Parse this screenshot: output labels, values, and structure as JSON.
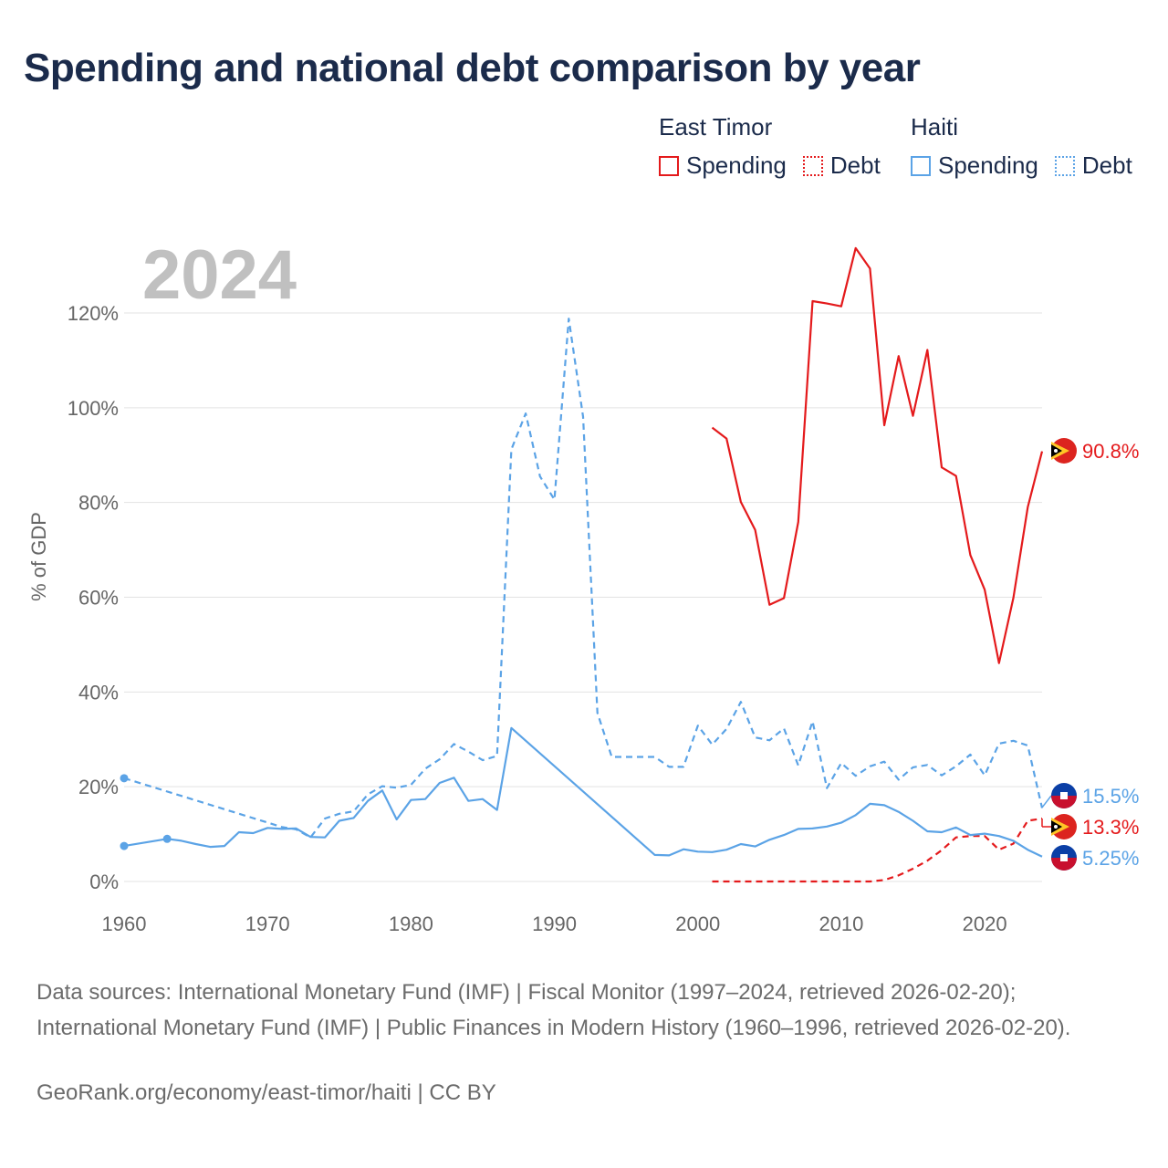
{
  "header": {
    "title": "Spending and national debt comparison by year"
  },
  "legend": {
    "groups": [
      {
        "country": "East Timor",
        "color": "#e41a1c",
        "items": [
          "Spending",
          "Debt"
        ]
      },
      {
        "country": "Haiti",
        "color": "#5ba3e6",
        "items": [
          "Spending",
          "Debt"
        ]
      }
    ]
  },
  "current_year": "2024",
  "end_labels": {
    "haiti_debt": "15.5%",
    "east_timor_spending": "90.8%",
    "east_timor_debt": "13.3%",
    "haiti_spending": "5.25%"
  },
  "footer": {
    "sources": "Data sources: International Monetary Fund (IMF) | Fiscal Monitor (1997–2024, retrieved 2026-02-20); International Monetary Fund (IMF) | Public Finances in Modern History (1960–1996, retrieved 2026-02-20).",
    "credit": "GeoRank.org/economy/east-timor/haiti | CC BY"
  },
  "chart_data": {
    "type": "line",
    "title": "Spending and national debt comparison by year",
    "xlabel": "",
    "ylabel": "% of GDP",
    "xlim": [
      1960,
      2024
    ],
    "ylim": [
      0,
      120
    ],
    "xticks": [
      1960,
      1970,
      1980,
      1990,
      2000,
      2010,
      2020
    ],
    "yticks": [
      0,
      20,
      40,
      60,
      80,
      100,
      120
    ],
    "ytick_labels": [
      "0%",
      "20%",
      "40%",
      "60%",
      "80%",
      "100%",
      "120%"
    ],
    "grid": true,
    "series": [
      {
        "name": "East Timor Spending",
        "country": "East Timor",
        "measure": "Spending",
        "color": "#e41a1c",
        "dash": "solid",
        "x": [
          2001,
          2002,
          2003,
          2004,
          2005,
          2006,
          2007,
          2008,
          2009,
          2010,
          2011,
          2012,
          2013,
          2014,
          2015,
          2016,
          2017,
          2018,
          2019,
          2020,
          2021,
          2022,
          2023,
          2024
        ],
        "y": [
          95.8,
          93.5,
          80.1,
          74.2,
          58.4,
          59.8,
          75.9,
          122.5,
          122,
          121.4,
          133.7,
          129.4,
          96.3,
          110.9,
          98.3,
          112.2,
          87.4,
          85.6,
          68.9,
          61.6,
          46.1,
          59.9,
          79,
          90.8
        ]
      },
      {
        "name": "East Timor Debt",
        "country": "East Timor",
        "measure": "Debt",
        "color": "#e41a1c",
        "dash": "dashed",
        "x": [
          2001,
          2002,
          2003,
          2004,
          2005,
          2006,
          2007,
          2008,
          2009,
          2010,
          2011,
          2012,
          2013,
          2014,
          2015,
          2016,
          2017,
          2018,
          2019,
          2020,
          2021,
          2022,
          2023,
          2024
        ],
        "y": [
          0,
          0,
          0,
          0,
          0,
          0,
          0,
          0,
          0,
          0,
          0,
          0,
          0.3,
          1.3,
          2.7,
          4.4,
          6.6,
          9.3,
          9.6,
          9.6,
          6.7,
          8,
          12.8,
          13.3
        ]
      },
      {
        "name": "Haiti Spending",
        "country": "Haiti",
        "measure": "Spending",
        "color": "#5ba3e6",
        "dash": "solid",
        "x": [
          1960,
          1963,
          1964,
          1965,
          1966,
          1967,
          1968,
          1969,
          1970,
          1971,
          1972,
          1973,
          1974,
          1975,
          1976,
          1977,
          1978,
          1979,
          1980,
          1981,
          1982,
          1983,
          1984,
          1985,
          1986,
          1987,
          1997,
          1998,
          1999,
          2000,
          2001,
          2002,
          2003,
          2004,
          2005,
          2006,
          2007,
          2008,
          2009,
          2010,
          2011,
          2012,
          2013,
          2014,
          2015,
          2016,
          2017,
          2018,
          2019,
          2020,
          2021,
          2022,
          2023,
          2024
        ],
        "y": [
          7.5,
          9,
          8.6,
          7.9,
          7.3,
          7.5,
          10.4,
          10.2,
          11.3,
          11.1,
          11.2,
          9.4,
          9.3,
          12.8,
          13.4,
          17,
          19.2,
          13.1,
          17.2,
          17.4,
          20.8,
          21.9,
          17,
          17.4,
          15.1,
          32.4,
          5.6,
          5.5,
          6.8,
          6.3,
          6.2,
          6.7,
          7.9,
          7.4,
          8.8,
          9.8,
          11.1,
          11.2,
          11.6,
          12.4,
          14,
          16.4,
          16.1,
          14.7,
          12.8,
          10.6,
          10.4,
          11.4,
          9.8,
          10.1,
          9.6,
          8.6,
          6.7,
          5.25
        ]
      },
      {
        "name": "Haiti Debt",
        "country": "Haiti",
        "measure": "Debt",
        "color": "#5ba3e6",
        "dash": "dashed",
        "x": [
          1960,
          1971,
          1972,
          1973,
          1974,
          1975,
          1976,
          1977,
          1978,
          1979,
          1980,
          1981,
          1982,
          1983,
          1984,
          1985,
          1986,
          1987,
          1988,
          1989,
          1990,
          1991,
          1992,
          1993,
          1994,
          1995,
          1996,
          1997,
          1998,
          1999,
          2000,
          2001,
          2002,
          2003,
          2004,
          2005,
          2006,
          2007,
          2008,
          2009,
          2010,
          2011,
          2012,
          2013,
          2014,
          2015,
          2016,
          2017,
          2018,
          2019,
          2020,
          2021,
          2022,
          2023,
          2024
        ],
        "y": [
          21.8,
          11.5,
          11,
          9.3,
          13.3,
          14.3,
          14.8,
          18.4,
          20.1,
          19.8,
          20.4,
          23.8,
          25.8,
          29,
          27.4,
          25.6,
          26.5,
          91.2,
          98.8,
          85.5,
          80.6,
          118.8,
          98.1,
          35.6,
          26.3,
          26.3,
          26.3,
          26.3,
          24.2,
          24.2,
          32.9,
          28.9,
          32.2,
          37.9,
          30.4,
          29.8,
          32.3,
          24.5,
          33.8,
          19.7,
          25,
          22.3,
          24.3,
          25.3,
          21.5,
          24.1,
          24.6,
          22.4,
          24.3,
          26.8,
          22.4,
          29.1,
          29.7,
          28.7,
          15.5
        ]
      }
    ],
    "isolated_points": [
      {
        "series": "Haiti Spending",
        "x": 1960,
        "y": 7.5
      },
      {
        "series": "Haiti Spending",
        "x": 1963,
        "y": 9
      },
      {
        "series": "Haiti Debt",
        "x": 1960,
        "y": 21.8
      }
    ]
  }
}
